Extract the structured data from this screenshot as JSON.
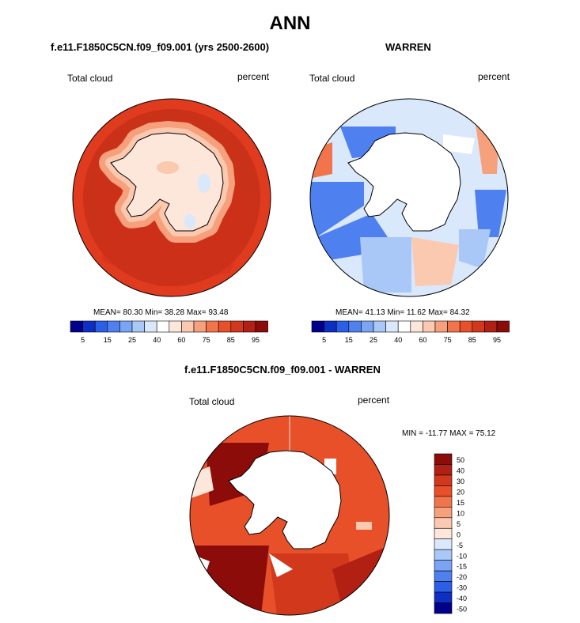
{
  "figure": {
    "title": "ANN",
    "panels": [
      {
        "run": "f.e11.F1850C5CN.f09_f09.001 (yrs 2500-2600)",
        "variable": "Total cloud",
        "units": "percent",
        "stats": "MEAN= 80.30  Min= 38.28  Max= 93.48",
        "mean": 80.3,
        "min": 38.28,
        "max": 93.48
      },
      {
        "run": "WARREN",
        "variable": "Total cloud",
        "units": "percent",
        "stats": "MEAN= 41.13  Min= 11.62  Max= 84.32",
        "mean": 41.13,
        "min": 11.62,
        "max": 84.32
      },
      {
        "run": "f.e11.F1850C5CN.f09_f09.001 - WARREN",
        "variable": "Total cloud",
        "units": "percent",
        "stats": "MIN = -11.77  MAX =  75.12",
        "min": -11.77,
        "max": 75.12
      }
    ]
  },
  "colorbars": {
    "absolute": {
      "tick_labels": [
        "5",
        "15",
        "25",
        "40",
        "60",
        "75",
        "85",
        "95"
      ],
      "colors": [
        "#00008c",
        "#0e2fc4",
        "#2b5fe8",
        "#4f80f0",
        "#7aa4f4",
        "#a9c8f8",
        "#d9e8fb",
        "#ffffff",
        "#fde6da",
        "#fbc8b0",
        "#f7a07c",
        "#f2744a",
        "#e8502a",
        "#d2381c",
        "#b22014",
        "#8c0c0a"
      ]
    },
    "difference": {
      "tick_labels": [
        "50",
        "40",
        "30",
        "20",
        "15",
        "10",
        "5",
        "0",
        "-5",
        "-10",
        "-15",
        "-20",
        "-30",
        "-40",
        "-50"
      ],
      "colors": [
        "#8c0c0a",
        "#b22014",
        "#d2381c",
        "#e8502a",
        "#f2744a",
        "#f7a07c",
        "#fbc8b0",
        "#fde6da",
        "#d9e8fb",
        "#a9c8f8",
        "#7aa4f4",
        "#4f80f0",
        "#2b5fe8",
        "#0e2fc4",
        "#00008c"
      ]
    }
  }
}
